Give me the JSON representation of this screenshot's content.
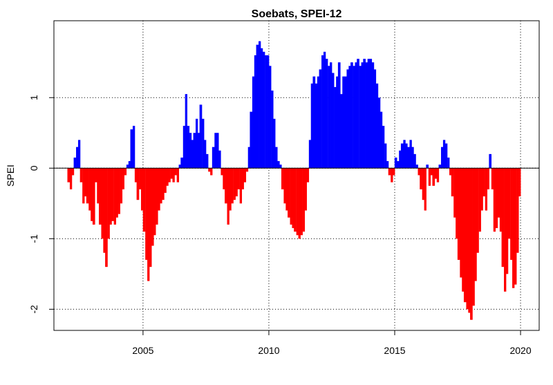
{
  "chart_data": {
    "type": "signed_bar",
    "title": "Soebats, SPEI-12",
    "ylabel": "SPEI",
    "colors": {
      "positive": "#0000ff",
      "negative": "#ff0000"
    },
    "grid": true,
    "xlim": [
      2001.46,
      2020.74
    ],
    "xticks": [
      2005,
      2010,
      2015,
      2020
    ],
    "ylim": [
      -2.3,
      2.09
    ],
    "yticks": [
      -2,
      -1,
      0,
      1
    ],
    "x": [
      2002.04,
      2002.13,
      2002.21,
      2002.29,
      2002.38,
      2002.46,
      2002.54,
      2002.63,
      2002.71,
      2002.79,
      2002.88,
      2002.96,
      2003.04,
      2003.13,
      2003.21,
      2003.29,
      2003.38,
      2003.46,
      2003.54,
      2003.63,
      2003.71,
      2003.79,
      2003.88,
      2003.96,
      2004.04,
      2004.13,
      2004.21,
      2004.29,
      2004.38,
      2004.46,
      2004.54,
      2004.63,
      2004.71,
      2004.79,
      2004.88,
      2004.96,
      2005.04,
      2005.13,
      2005.21,
      2005.29,
      2005.38,
      2005.46,
      2005.54,
      2005.63,
      2005.71,
      2005.79,
      2005.88,
      2005.96,
      2006.04,
      2006.13,
      2006.21,
      2006.29,
      2006.38,
      2006.46,
      2006.54,
      2006.63,
      2006.71,
      2006.79,
      2006.88,
      2006.96,
      2007.04,
      2007.13,
      2007.21,
      2007.29,
      2007.38,
      2007.46,
      2007.54,
      2007.63,
      2007.71,
      2007.79,
      2007.88,
      2007.96,
      2008.04,
      2008.13,
      2008.21,
      2008.29,
      2008.38,
      2008.46,
      2008.54,
      2008.63,
      2008.71,
      2008.79,
      2008.88,
      2008.96,
      2009.04,
      2009.13,
      2009.21,
      2009.29,
      2009.38,
      2009.46,
      2009.54,
      2009.63,
      2009.71,
      2009.79,
      2009.88,
      2009.96,
      2010.04,
      2010.13,
      2010.21,
      2010.29,
      2010.38,
      2010.46,
      2010.54,
      2010.63,
      2010.71,
      2010.79,
      2010.88,
      2010.96,
      2011.04,
      2011.13,
      2011.21,
      2011.29,
      2011.38,
      2011.46,
      2011.54,
      2011.63,
      2011.71,
      2011.79,
      2011.88,
      2011.96,
      2012.04,
      2012.13,
      2012.21,
      2012.29,
      2012.38,
      2012.46,
      2012.54,
      2012.63,
      2012.71,
      2012.79,
      2012.88,
      2012.96,
      2013.04,
      2013.13,
      2013.21,
      2013.29,
      2013.38,
      2013.46,
      2013.54,
      2013.63,
      2013.71,
      2013.79,
      2013.88,
      2013.96,
      2014.04,
      2014.13,
      2014.21,
      2014.29,
      2014.38,
      2014.46,
      2014.54,
      2014.63,
      2014.71,
      2014.79,
      2014.88,
      2014.96,
      2015.04,
      2015.13,
      2015.21,
      2015.29,
      2015.38,
      2015.46,
      2015.54,
      2015.63,
      2015.71,
      2015.79,
      2015.88,
      2015.96,
      2016.04,
      2016.13,
      2016.21,
      2016.29,
      2016.38,
      2016.46,
      2016.54,
      2016.63,
      2016.71,
      2016.79,
      2016.88,
      2016.96,
      2017.04,
      2017.13,
      2017.21,
      2017.29,
      2017.38,
      2017.46,
      2017.54,
      2017.63,
      2017.71,
      2017.79,
      2017.88,
      2017.96,
      2018.04,
      2018.13,
      2018.21,
      2018.29,
      2018.38,
      2018.46,
      2018.54,
      2018.63,
      2018.71,
      2018.79,
      2018.88,
      2018.96,
      2019.04,
      2019.13,
      2019.21,
      2019.29,
      2019.38,
      2019.46,
      2019.54,
      2019.63,
      2019.71,
      2019.79,
      2019.88,
      2019.96
    ],
    "values": [
      -0.2,
      -0.3,
      -0.1,
      0.15,
      0.3,
      0.4,
      -0.2,
      -0.5,
      -0.4,
      -0.5,
      -0.6,
      -0.75,
      -0.8,
      -0.2,
      -0.5,
      -0.8,
      -1.0,
      -1.2,
      -1.4,
      -1.0,
      -0.8,
      -0.75,
      -0.8,
      -0.7,
      -0.65,
      -0.5,
      -0.3,
      -0.1,
      0.05,
      0.1,
      0.55,
      0.6,
      -0.2,
      -0.45,
      -0.3,
      -0.6,
      -0.9,
      -1.3,
      -1.6,
      -1.4,
      -1.1,
      -0.95,
      -0.8,
      -0.6,
      -0.5,
      -0.45,
      -0.35,
      -0.25,
      -0.2,
      -0.15,
      -0.2,
      -0.1,
      -0.2,
      0.05,
      0.15,
      0.6,
      1.05,
      0.6,
      0.5,
      0.4,
      0.5,
      0.7,
      0.5,
      0.9,
      0.7,
      0.4,
      0.2,
      -0.05,
      -0.1,
      0.3,
      0.5,
      0.5,
      0.25,
      -0.1,
      -0.3,
      -0.5,
      -0.8,
      -0.6,
      -0.5,
      -0.45,
      -0.4,
      -0.3,
      -0.5,
      -0.3,
      -0.2,
      -0.05,
      0.3,
      0.8,
      1.3,
      1.6,
      1.75,
      1.8,
      1.7,
      1.65,
      1.6,
      1.6,
      1.45,
      1.1,
      0.7,
      0.3,
      0.1,
      0.05,
      -0.3,
      -0.5,
      -0.6,
      -0.7,
      -0.8,
      -0.85,
      -0.9,
      -0.95,
      -1.0,
      -0.95,
      -0.9,
      -0.6,
      -0.2,
      0.4,
      1.2,
      1.3,
      1.2,
      1.3,
      1.4,
      1.6,
      1.65,
      1.55,
      1.45,
      1.5,
      1.35,
      1.15,
      1.3,
      1.5,
      1.05,
      1.3,
      1.3,
      1.4,
      1.45,
      1.5,
      1.45,
      1.5,
      1.55,
      1.45,
      1.5,
      1.55,
      1.5,
      1.55,
      1.55,
      1.5,
      1.4,
      1.2,
      1.0,
      0.8,
      0.6,
      0.35,
      0.1,
      -0.1,
      -0.2,
      -0.1,
      0.15,
      0.1,
      0.25,
      0.35,
      0.4,
      0.35,
      0.3,
      0.4,
      0.3,
      0.2,
      0.05,
      -0.1,
      -0.3,
      -0.45,
      -0.6,
      0.05,
      -0.25,
      -0.1,
      -0.25,
      -0.15,
      -0.2,
      0.05,
      0.3,
      0.4,
      0.35,
      0.15,
      -0.1,
      -0.4,
      -0.7,
      -1.0,
      -1.3,
      -1.55,
      -1.75,
      -1.9,
      -2.0,
      -2.05,
      -2.15,
      -1.95,
      -1.6,
      -1.2,
      -0.9,
      -0.6,
      -0.4,
      -0.6,
      -0.3,
      0.2,
      -0.3,
      -0.9,
      -0.85,
      -0.7,
      -0.9,
      -1.4,
      -1.75,
      -1.5,
      -1.0,
      -1.3,
      -1.7,
      -1.65,
      -1.2,
      -0.4
    ]
  }
}
